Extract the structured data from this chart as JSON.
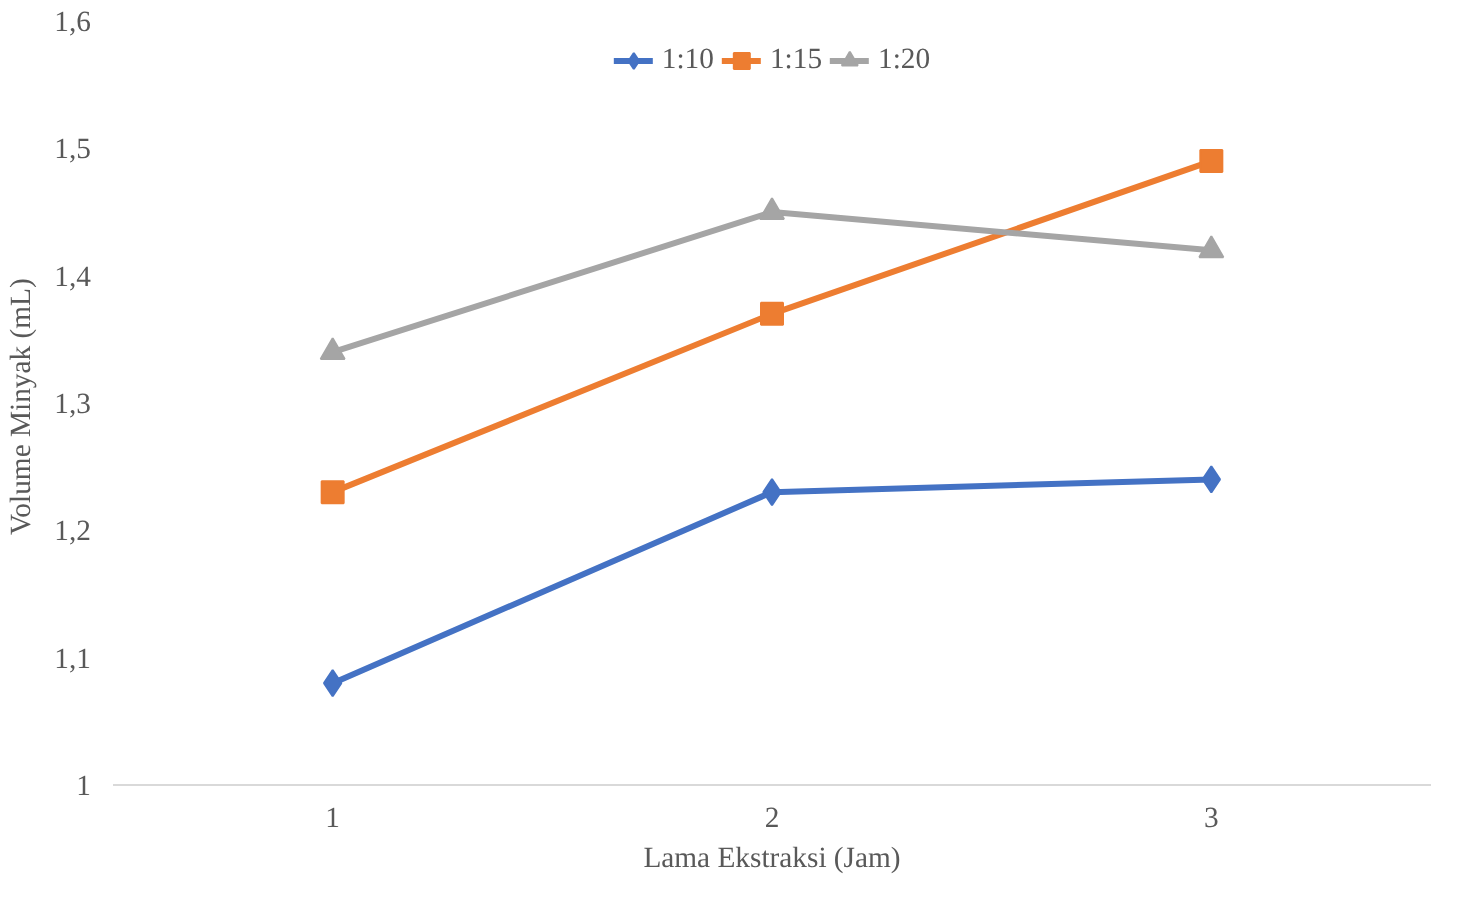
{
  "chart_data": {
    "type": "line",
    "xlabel": "Lama Ekstraksi (Jam)",
    "ylabel": "Volume Minyak  (mL)",
    "categories": [
      "1",
      "2",
      "3"
    ],
    "series": [
      {
        "name": "1:10",
        "color": "#4472c4",
        "marker": "diamond",
        "values": [
          1.08,
          1.23,
          1.24
        ]
      },
      {
        "name": "1:15",
        "color": "#ed7d31",
        "marker": "square",
        "values": [
          1.23,
          1.37,
          1.49
        ]
      },
      {
        "name": "1:20",
        "color": "#a5a5a5",
        "marker": "triangle",
        "values": [
          1.34,
          1.45,
          1.42
        ]
      }
    ],
    "ylim": [
      1,
      1.6
    ],
    "yticks": [
      {
        "value": 1,
        "label": "1"
      },
      {
        "value": 1.1,
        "label": "1,1"
      },
      {
        "value": 1.2,
        "label": "1,2"
      },
      {
        "value": 1.3,
        "label": "1,3"
      },
      {
        "value": 1.4,
        "label": "1,4"
      },
      {
        "value": 1.5,
        "label": "1,5"
      },
      {
        "value": 1.6,
        "label": "1,6"
      }
    ],
    "grid": false,
    "legend": "top",
    "line_style": "solid"
  }
}
